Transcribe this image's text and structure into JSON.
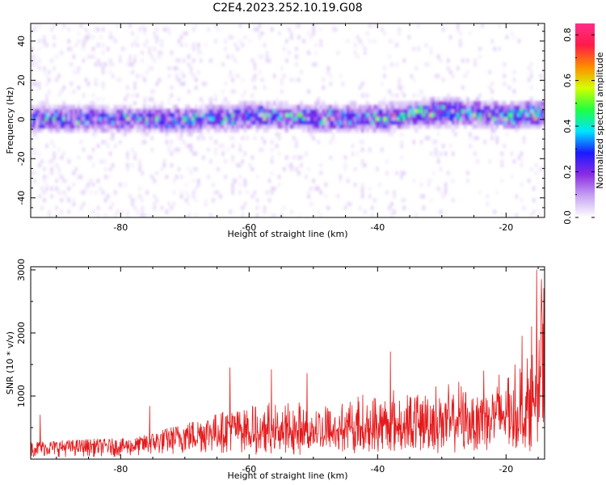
{
  "title": "C2E4.2023.252.10.19.G08",
  "chart_data": [
    {
      "type": "heatmap",
      "xlabel": "Height of straight line (km)",
      "ylabel": "Frequency (Hz)",
      "xlim": [
        -94,
        -14
      ],
      "ylim": [
        -50,
        49
      ],
      "xticks": [
        -80,
        -60,
        -40,
        -20
      ],
      "yticks": [
        -40,
        -20,
        0,
        20,
        40
      ],
      "colorbar": {
        "label": "Normalized spectral amplitude",
        "range": [
          0,
          0.85
        ],
        "ticks": [
          "0.0",
          "0.2",
          "0.4",
          "0.6",
          "0.8"
        ],
        "colormap": [
          "#ffffff",
          "#c7a3f2",
          "#8a2be2",
          "#1a1aff",
          "#00e5ff",
          "#20ff40",
          "#d4ff00",
          "#ff8a00",
          "#ff1a4a",
          "#ff2f8a"
        ]
      },
      "band": {
        "center_hz": [
          {
            "x": -94,
            "y": 1
          },
          {
            "x": -80,
            "y": 0
          },
          {
            "x": -70,
            "y": 0
          },
          {
            "x": -60,
            "y": 2
          },
          {
            "x": -50,
            "y": 1
          },
          {
            "x": -40,
            "y": 1
          },
          {
            "x": -30,
            "y": 4
          },
          {
            "x": -20,
            "y": 2
          },
          {
            "x": -14,
            "y": 3
          }
        ],
        "halfwidth_hz": 5,
        "peak_amplitude": 0.85
      }
    },
    {
      "type": "line",
      "xlabel": "Height of straight line (km)",
      "ylabel": "SNR (10 * v/v)",
      "xlim": [
        -94,
        -14
      ],
      "ylim": [
        0,
        3050
      ],
      "xticks": [
        -80,
        -60,
        -40,
        -20
      ],
      "yticks": [
        1000,
        2000,
        3000
      ],
      "color": "#e41a1c",
      "envelope": [
        {
          "x": -94,
          "y": 280
        },
        {
          "x": -85,
          "y": 320
        },
        {
          "x": -78,
          "y": 330
        },
        {
          "x": -72,
          "y": 520
        },
        {
          "x": -64,
          "y": 760
        },
        {
          "x": -56,
          "y": 820
        },
        {
          "x": -48,
          "y": 880
        },
        {
          "x": -40,
          "y": 1000
        },
        {
          "x": -32,
          "y": 1080
        },
        {
          "x": -26,
          "y": 1150
        },
        {
          "x": -20,
          "y": 1350
        },
        {
          "x": -16,
          "y": 1600
        },
        {
          "x": -14.5,
          "y": 2600
        }
      ],
      "peaks": [
        {
          "x": -92.5,
          "y": 700
        },
        {
          "x": -75.5,
          "y": 840
        },
        {
          "x": -63,
          "y": 1450
        },
        {
          "x": -56.5,
          "y": 1420
        },
        {
          "x": -51,
          "y": 1360
        },
        {
          "x": -38,
          "y": 1700
        },
        {
          "x": -23.5,
          "y": 1400
        },
        {
          "x": -17.5,
          "y": 1950
        },
        {
          "x": -16,
          "y": 2100
        },
        {
          "x": -15.2,
          "y": 3000
        },
        {
          "x": -14.5,
          "y": 2850
        }
      ]
    }
  ]
}
